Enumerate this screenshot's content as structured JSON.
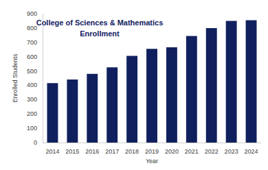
{
  "chart_data": {
    "type": "bar",
    "title": "College of Sciences & Mathematics\nEnrollment",
    "x_label": "Year",
    "y_label": "Enrolled Students",
    "categories": [
      "2014",
      "2015",
      "2016",
      "2017",
      "2018",
      "2019",
      "2020",
      "2021",
      "2022",
      "2023",
      "2024"
    ],
    "values": [
      415,
      440,
      480,
      525,
      605,
      655,
      665,
      745,
      800,
      850,
      855
    ],
    "color": "#10205e",
    "ylim": [
      0,
      900
    ],
    "yticks": [
      0,
      100,
      200,
      300,
      400,
      500,
      600,
      700,
      800,
      900
    ],
    "grid": false
  }
}
